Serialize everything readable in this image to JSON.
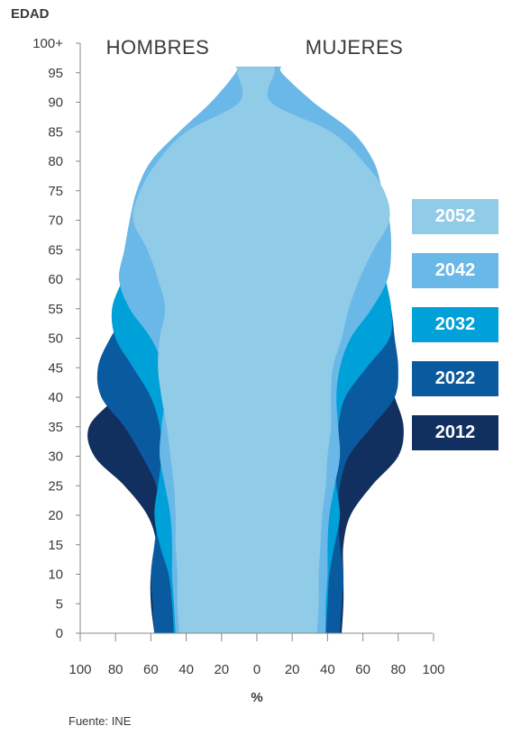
{
  "chart_data": {
    "type": "area",
    "title": "",
    "ylabel": "EDAD",
    "xlabel": "%",
    "left_label": "HOMBRES",
    "right_label": "MUJERES",
    "y_ticks": [
      "0",
      "5",
      "10",
      "15",
      "20",
      "25",
      "30",
      "35",
      "40",
      "45",
      "50",
      "55",
      "60",
      "65",
      "70",
      "75",
      "80",
      "85",
      "90",
      "95",
      "100+"
    ],
    "x_ticks_left": [
      "100",
      "80",
      "60",
      "40",
      "20"
    ],
    "x_tick_center": "0",
    "x_ticks_right": [
      "20",
      "40",
      "60",
      "80",
      "100"
    ],
    "xlim": [
      -100,
      100
    ],
    "ylim": [
      0,
      100
    ],
    "ages": [
      0,
      5,
      10,
      15,
      20,
      25,
      30,
      35,
      40,
      45,
      50,
      55,
      60,
      65,
      70,
      75,
      80,
      85,
      90,
      95
    ],
    "series": [
      {
        "name": "2012",
        "color": "#12305f",
        "men": [
          -58,
          -60,
          -60,
          -57,
          -62,
          -75,
          -92,
          -95,
          -80,
          -68,
          -70,
          -64,
          -58,
          -56,
          -54,
          -50,
          -44,
          -30,
          -15,
          -10
        ],
        "women": [
          48,
          49,
          49,
          49,
          53,
          65,
          80,
          83,
          78,
          72,
          75,
          70,
          66,
          64,
          63,
          58,
          54,
          40,
          20,
          12
        ]
      },
      {
        "name": "2022",
        "color": "#0a5aa0",
        "men": [
          -58,
          -59,
          -60,
          -58,
          -56,
          -57,
          -65,
          -75,
          -88,
          -90,
          -83,
          -72,
          -66,
          -62,
          -60,
          -56,
          -50,
          -35,
          -18,
          -10
        ],
        "women": [
          47,
          48,
          49,
          47,
          46,
          47,
          52,
          65,
          78,
          80,
          78,
          76,
          72,
          70,
          68,
          64,
          60,
          45,
          22,
          12
        ]
      },
      {
        "name": "2032",
        "color": "#00a0d8",
        "men": [
          -47,
          -48,
          -50,
          -55,
          -58,
          -56,
          -54,
          -55,
          -60,
          -70,
          -80,
          -82,
          -76,
          -70,
          -68,
          -64,
          -58,
          -42,
          -24,
          -12
        ],
        "women": [
          39,
          40,
          41,
          44,
          47,
          45,
          44,
          46,
          50,
          62,
          75,
          76,
          73,
          71,
          70,
          68,
          64,
          50,
          28,
          14
        ]
      },
      {
        "name": "2042",
        "color": "#6ab8e8",
        "men": [
          -46,
          -47,
          -48,
          -48,
          -49,
          -52,
          -55,
          -54,
          -52,
          -53,
          -60,
          -72,
          -78,
          -75,
          -72,
          -68,
          -60,
          -44,
          -26,
          -12
        ],
        "women": [
          39,
          39,
          40,
          40,
          41,
          44,
          47,
          46,
          45,
          47,
          53,
          65,
          74,
          76,
          75,
          71,
          66,
          54,
          32,
          14
        ]
      },
      {
        "name": "2052",
        "color": "#90cbe8",
        "men": [
          -44,
          -45,
          -45,
          -46,
          -46,
          -47,
          -49,
          -51,
          -54,
          -56,
          -55,
          -52,
          -56,
          -62,
          -70,
          -66,
          -56,
          -40,
          -10,
          -11
        ],
        "women": [
          34,
          35,
          35,
          36,
          37,
          39,
          40,
          42,
          42,
          43,
          48,
          52,
          58,
          66,
          75,
          72,
          60,
          42,
          8,
          10
        ]
      }
    ],
    "legend_order": [
      "2052",
      "2042",
      "2032",
      "2022",
      "2012"
    ],
    "source": "Fuente: INE"
  }
}
